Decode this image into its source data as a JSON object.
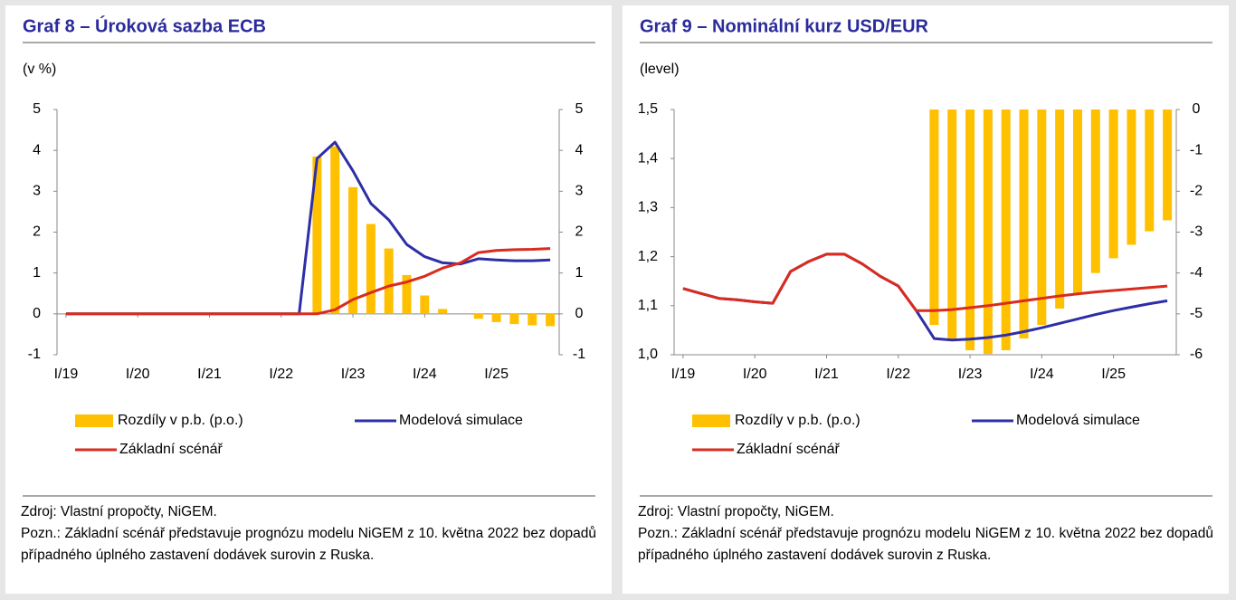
{
  "chart_data": [
    {
      "type": "combo",
      "title": "Graf 8 – Úroková sazba ECB",
      "unit_label": "(v %)",
      "categories": [
        "I/19",
        null,
        null,
        null,
        "I/20",
        null,
        null,
        null,
        "I/21",
        null,
        null,
        null,
        "I/22",
        null,
        null,
        null,
        "I/23",
        null,
        null,
        null,
        "I/24",
        null,
        null,
        null,
        "I/25",
        null,
        null,
        null
      ],
      "ylim": [
        -1,
        5
      ],
      "yticks": [
        -1,
        0,
        1,
        2,
        3,
        4,
        5
      ],
      "y2lim": [
        -1,
        5
      ],
      "y2ticks": [
        -1,
        0,
        1,
        2,
        3,
        4,
        5
      ],
      "series": [
        {
          "name": "Rozdíly v p.b. (p.o.)",
          "type": "bar",
          "axis": "y2",
          "color": "#ffc000",
          "values": [
            0,
            0,
            0,
            0,
            0,
            0,
            0,
            0,
            0,
            0,
            0,
            0,
            0,
            0,
            3.85,
            4.1,
            3.1,
            2.2,
            1.6,
            0.95,
            0.45,
            0.12,
            0,
            -0.12,
            -0.2,
            -0.25,
            -0.28,
            -0.3
          ]
        },
        {
          "name": "Modelová simulace",
          "type": "line",
          "color": "#2e2ea6",
          "values": [
            0,
            0,
            0,
            0,
            0,
            0,
            0,
            0,
            0,
            0,
            0,
            0,
            0,
            0,
            3.8,
            4.2,
            3.5,
            2.7,
            2.3,
            1.7,
            1.4,
            1.25,
            1.22,
            1.35,
            1.32,
            1.3,
            1.3,
            1.32
          ]
        },
        {
          "name": "Základní scénář",
          "type": "line",
          "color": "#d92b1e",
          "values": [
            0,
            0,
            0,
            0,
            0,
            0,
            0,
            0,
            0,
            0,
            0,
            0,
            0,
            0,
            0,
            0.1,
            0.35,
            0.52,
            0.68,
            0.78,
            0.92,
            1.12,
            1.25,
            1.5,
            1.55,
            1.57,
            1.58,
            1.6
          ]
        }
      ],
      "source": "Zdroj: Vlastní propočty, NiGEM.",
      "note": "Pozn.: Základní scénář představuje prognózu modelu NiGEM z 10. května 2022 bez dopadů případného úplného zastavení dodávek surovin z Ruska."
    },
    {
      "type": "combo",
      "title": "Graf 9 – Nominální kurz USD/EUR",
      "unit_label": "(level)",
      "categories": [
        "I/19",
        null,
        null,
        null,
        "I/20",
        null,
        null,
        null,
        "I/21",
        null,
        null,
        null,
        "I/22",
        null,
        null,
        null,
        "I/23",
        null,
        null,
        null,
        "I/24",
        null,
        null,
        null,
        "I/25",
        null,
        null,
        null
      ],
      "ylim": [
        1.0,
        1.5
      ],
      "yticks": [
        {
          "value": 1.0,
          "label": "1,0"
        },
        {
          "value": 1.1,
          "label": "1,1"
        },
        {
          "value": 1.2,
          "label": "1,2"
        },
        {
          "value": 1.3,
          "label": "1,3"
        },
        {
          "value": 1.4,
          "label": "1,4"
        },
        {
          "value": 1.5,
          "label": "1,5"
        }
      ],
      "y2lim": [
        -6,
        0
      ],
      "y2ticks": [
        -6,
        -5,
        -4,
        -3,
        -2,
        -1,
        0
      ],
      "series": [
        {
          "name": "Rozdíly v p.b. (p.o.)",
          "type": "bar",
          "axis": "y2",
          "color": "#ffc000",
          "values": [
            0,
            0,
            0,
            0,
            0,
            0,
            0,
            0,
            0,
            0,
            0,
            0,
            0,
            0,
            -5.27,
            -5.64,
            -5.89,
            -5.98,
            -5.89,
            -5.6,
            -5.27,
            -4.87,
            -4.49,
            -4.0,
            -3.64,
            -3.31,
            -2.98,
            -2.71
          ]
        },
        {
          "name": "Modelová simulace",
          "type": "line",
          "color": "#2e2ea6",
          "values": [
            1.135,
            1.125,
            1.115,
            1.112,
            1.108,
            1.105,
            1.17,
            1.19,
            1.205,
            1.205,
            1.185,
            1.16,
            1.14,
            1.09,
            1.033,
            1.03,
            1.032,
            1.035,
            1.04,
            1.047,
            1.055,
            1.064,
            1.073,
            1.082,
            1.09,
            1.097,
            1.104,
            1.11
          ]
        },
        {
          "name": "Základní scénář",
          "type": "line",
          "color": "#d92b1e",
          "values": [
            1.135,
            1.125,
            1.115,
            1.112,
            1.108,
            1.105,
            1.17,
            1.19,
            1.205,
            1.205,
            1.185,
            1.16,
            1.14,
            1.09,
            1.09,
            1.092,
            1.096,
            1.1,
            1.105,
            1.11,
            1.115,
            1.12,
            1.124,
            1.128,
            1.131,
            1.134,
            1.137,
            1.14
          ]
        }
      ],
      "source": "Zdroj: Vlastní propočty, NiGEM.",
      "note": "Pozn.: Základní scénář představuje prognózu modelu NiGEM z 10. května 2022 bez dopadů případného úplného zastavení dodávek surovin z Ruska."
    }
  ]
}
